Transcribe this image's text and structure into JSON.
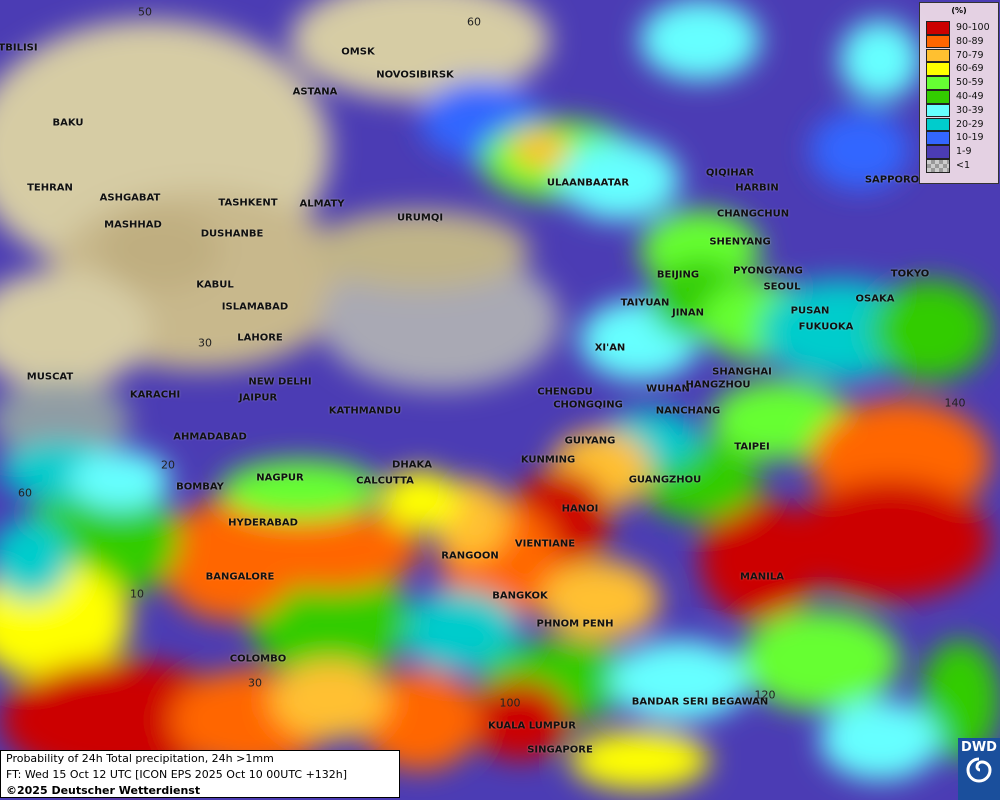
{
  "legend": {
    "unit": "(%)",
    "classes": [
      {
        "label": "90-100",
        "color": "#cc0000"
      },
      {
        "label": "80-89",
        "color": "#ff6600"
      },
      {
        "label": "70-79",
        "color": "#ffc030"
      },
      {
        "label": "60-69",
        "color": "#ffff00"
      },
      {
        "label": "50-59",
        "color": "#66ff33"
      },
      {
        "label": "40-49",
        "color": "#33cc00"
      },
      {
        "label": "30-39",
        "color": "#66ffff"
      },
      {
        "label": "20-29",
        "color": "#00cccc"
      },
      {
        "label": "10-19",
        "color": "#3366ff"
      },
      {
        "label": "1-9",
        "color": "#4b3cb4"
      },
      {
        "label": "<1",
        "color": "#b0b0b0"
      }
    ]
  },
  "info": {
    "title": "Probability of 24h Total precipitation, 24h >1mm",
    "forecast": "FT: Wed 15 Oct 12 UTC [ICON EPS 2025 Oct 10 00UTC +132h]",
    "copyright": "©2025 Deutscher Wetterdienst"
  },
  "logo": {
    "text": "DWD"
  },
  "grid_labels": [
    "50",
    "60",
    "30",
    "20",
    "60",
    "10",
    "140",
    "100",
    "120",
    "30"
  ],
  "cities": [
    "TBILISI",
    "BAKU",
    "TEHRAN",
    "ASHGABAT",
    "MASHHAD",
    "TASHKENT",
    "ALMATY",
    "DUSHANBE",
    "OMSK",
    "NOVOSIBIRSK",
    "ASTANA",
    "URUMQI",
    "KABUL",
    "ISLAMABAD",
    "LAHORE",
    "NEW DELHI",
    "JAIPUR",
    "KATHMANDU",
    "MUSCAT",
    "KARACHI",
    "AHMADABAD",
    "BOMBAY",
    "NAGPUR",
    "CALCUTTA",
    "DHAKA",
    "HYDERABAD",
    "BANGALORE",
    "COLOMBO",
    "RANGOON",
    "VIENTIANE",
    "HANOI",
    "BANGKOK",
    "PHNOM PENH",
    "KUALA LUMPUR",
    "SINGAPORE",
    "BANDAR SERI BEGAWAN",
    "MANILA",
    "KUNMING",
    "GUIYANG",
    "GUANGZHOU",
    "TAIPEI",
    "CHONGQING",
    "CHENGDU",
    "XI'AN",
    "WUHAN",
    "NANCHANG",
    "HANGZHOU",
    "SHANGHAI",
    "JINAN",
    "TAIYUAN",
    "BEIJING",
    "SHENYANG",
    "PYONGYANG",
    "SEOUL",
    "PUSAN",
    "FUKUOKA",
    "OSAKA",
    "TOKYO",
    "SAPPORO",
    "CHANGCHUN",
    "HARBIN",
    "QIQIHAR",
    "ULAANBAATAR"
  ]
}
